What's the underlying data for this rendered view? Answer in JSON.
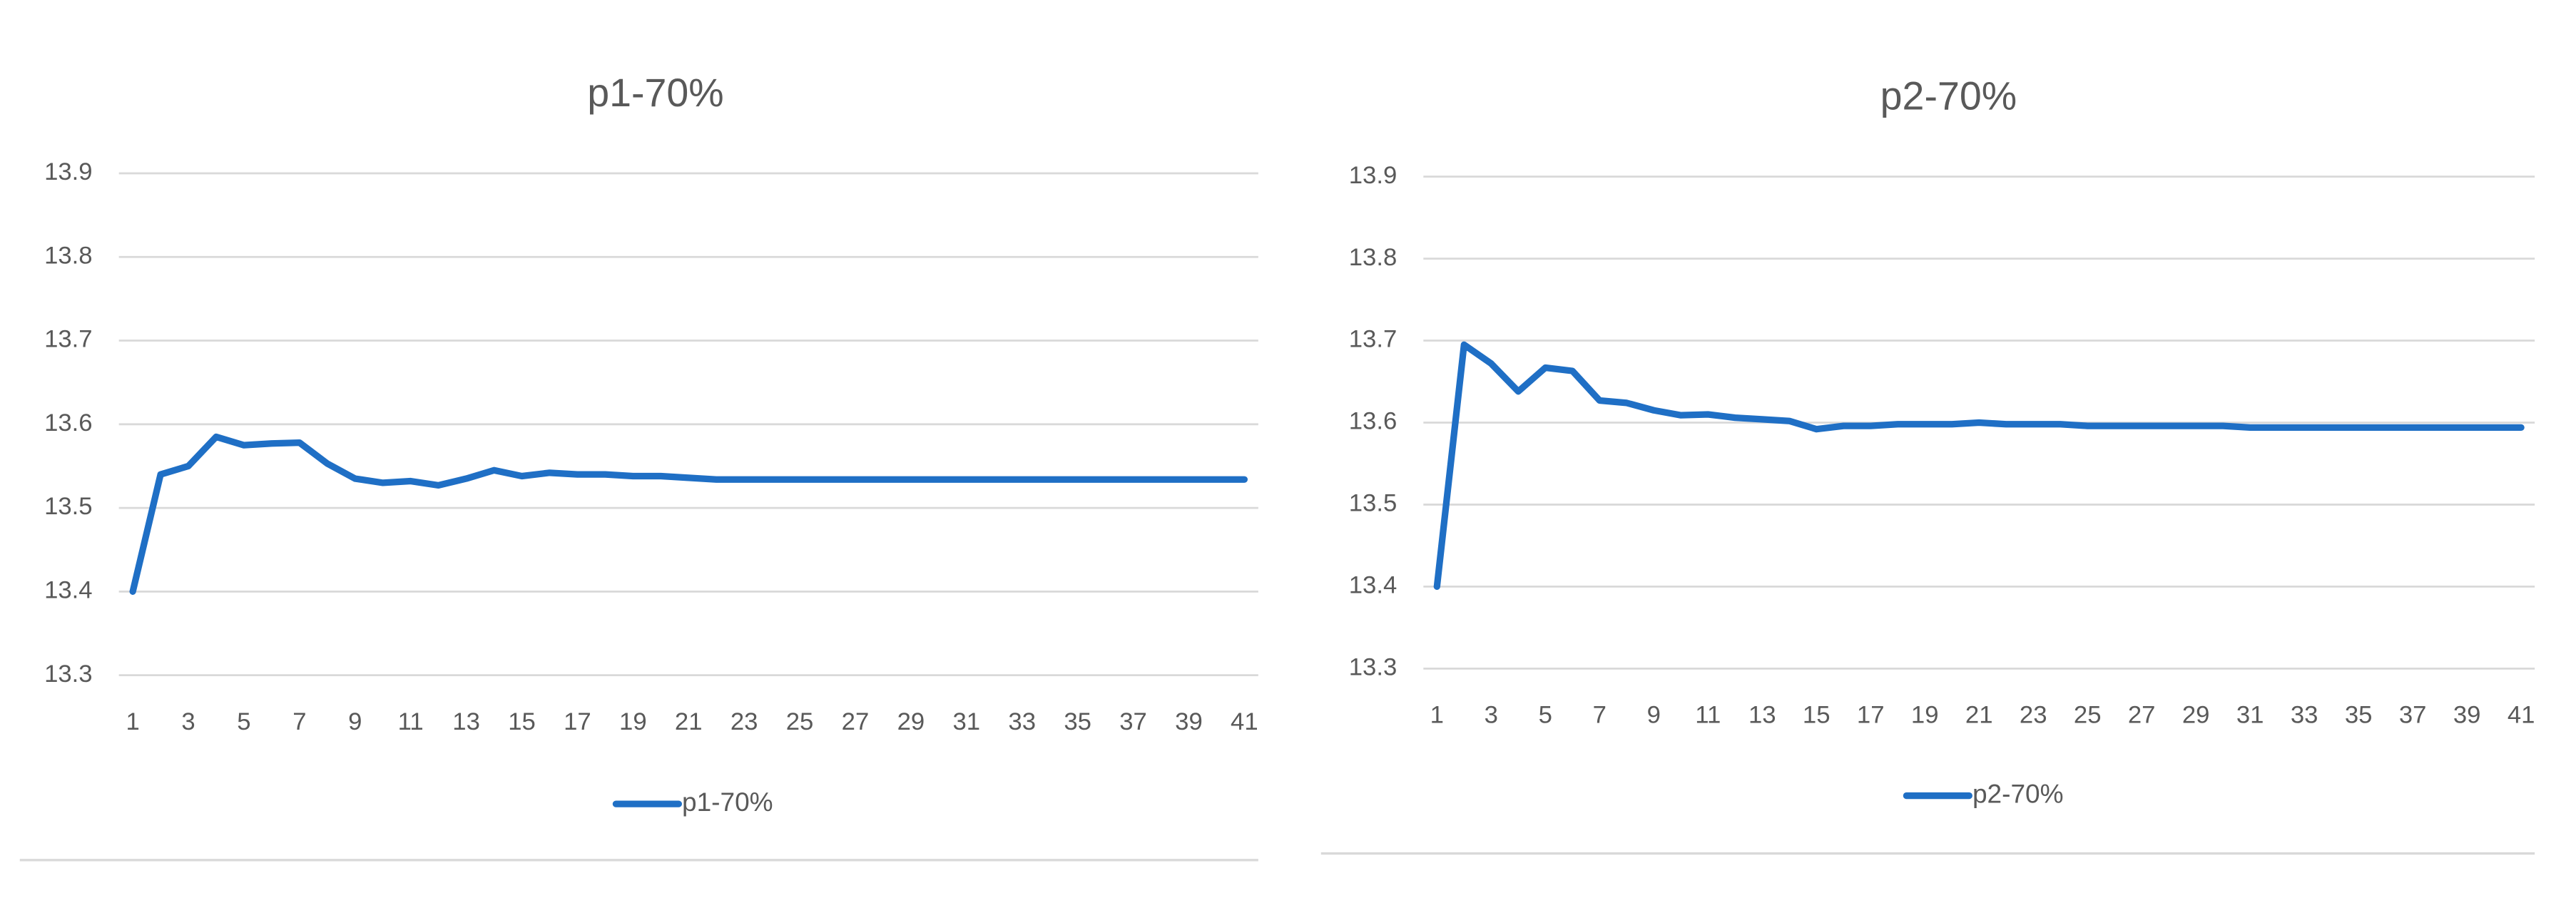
{
  "chart_data": [
    {
      "type": "line",
      "title": "p1-70%",
      "categories": [
        "1",
        null,
        "3",
        null,
        "5",
        null,
        "7",
        null,
        "9",
        null,
        "11",
        null,
        "13",
        null,
        "15",
        null,
        "17",
        null,
        "19",
        null,
        "21",
        null,
        "23",
        null,
        "25",
        null,
        "27",
        null,
        "29",
        null,
        "31",
        null,
        "33",
        null,
        "35",
        null,
        "37",
        null,
        "39",
        null,
        "41"
      ],
      "series": [
        {
          "name": "p1-70%",
          "color": "#1f6fc5",
          "values": [
            13.4,
            13.54,
            13.55,
            13.585,
            13.575,
            13.577,
            13.578,
            13.553,
            13.535,
            13.53,
            13.532,
            13.527,
            13.535,
            13.545,
            13.538,
            13.542,
            13.54,
            13.54,
            13.538,
            13.538,
            13.536,
            13.534,
            13.534,
            13.534,
            13.534,
            13.534,
            13.534,
            13.534,
            13.534,
            13.534,
            13.534,
            13.534,
            13.534,
            13.534,
            13.534,
            13.534,
            13.534,
            13.534,
            13.534,
            13.534,
            13.534
          ]
        }
      ],
      "ylim": [
        13.3,
        13.9
      ],
      "yticks": [
        13.3,
        13.4,
        13.5,
        13.6,
        13.7,
        13.8,
        13.9
      ],
      "grid": true,
      "legend": "bottom"
    },
    {
      "type": "line",
      "title": "p2-70%",
      "categories": [
        "1",
        null,
        "3",
        null,
        "5",
        null,
        "7",
        null,
        "9",
        null,
        "11",
        null,
        "13",
        null,
        "15",
        null,
        "17",
        null,
        "19",
        null,
        "21",
        null,
        "23",
        null,
        "25",
        null,
        "27",
        null,
        "29",
        null,
        "31",
        null,
        "33",
        null,
        "35",
        null,
        "37",
        null,
        "39",
        null,
        "41"
      ],
      "series": [
        {
          "name": "p2-70%",
          "color": "#1f6fc5",
          "values": [
            13.4,
            13.695,
            13.672,
            13.638,
            13.667,
            13.663,
            13.627,
            13.624,
            13.615,
            13.609,
            13.61,
            13.606,
            13.604,
            13.602,
            13.592,
            13.596,
            13.596,
            13.598,
            13.598,
            13.598,
            13.6,
            13.598,
            13.598,
            13.598,
            13.596,
            13.596,
            13.596,
            13.596,
            13.596,
            13.596,
            13.594,
            13.594,
            13.594,
            13.594,
            13.594,
            13.594,
            13.594,
            13.594,
            13.594,
            13.594,
            13.594
          ]
        }
      ],
      "ylim": [
        13.3,
        13.9
      ],
      "yticks": [
        13.3,
        13.4,
        13.5,
        13.6,
        13.7,
        13.8,
        13.9
      ],
      "grid": true,
      "legend": "bottom"
    }
  ]
}
